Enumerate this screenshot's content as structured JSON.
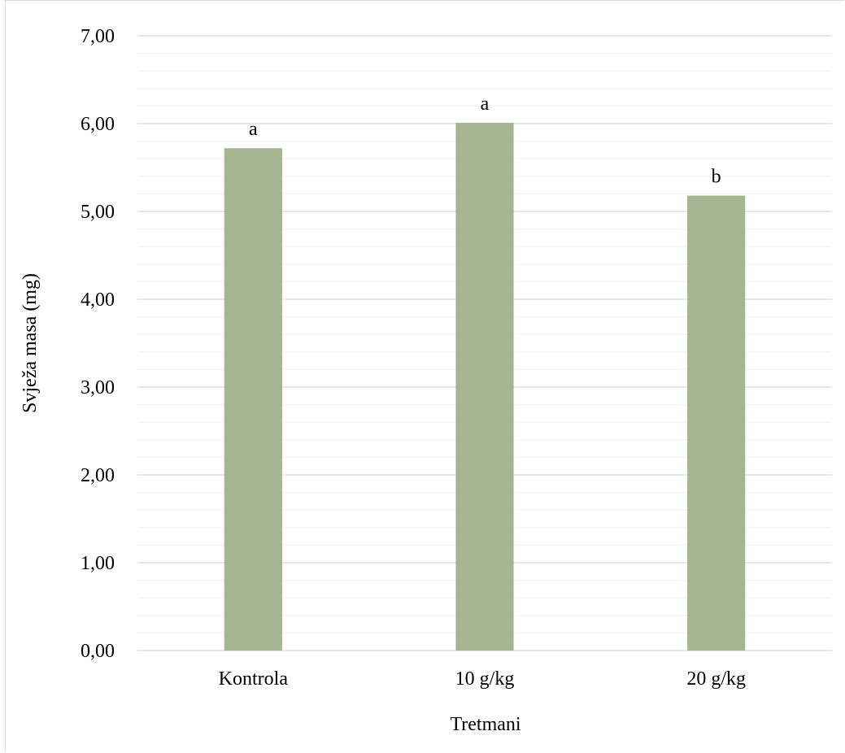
{
  "chart_data": {
    "type": "bar",
    "categories": [
      "Kontrola",
      "10 g/kg",
      "20 g/kg"
    ],
    "values": [
      5.72,
      6.01,
      5.18
    ],
    "annotations": [
      "a",
      "a",
      "b"
    ],
    "title": "",
    "xlabel": "Tretmani",
    "ylabel": "Svježa masa (mg)",
    "ylim": [
      0,
      7
    ],
    "yticks": [
      "0,00",
      "1,00",
      "2,00",
      "3,00",
      "4,00",
      "5,00",
      "6,00",
      "7,00"
    ],
    "major_step": 1,
    "minor_step": 0.2,
    "grid": true,
    "legend": "none",
    "bar_color": "#a6b591",
    "gridline_color": "#d9d9d9",
    "minor_gridline_color": "#f0f0f0"
  }
}
